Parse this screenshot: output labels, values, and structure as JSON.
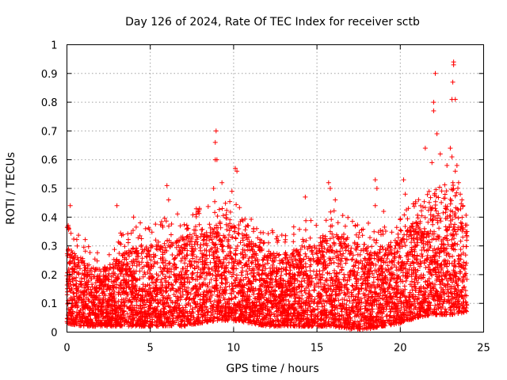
{
  "chart_data": {
    "type": "scatter",
    "title": "Day 126 of 2024, Rate Of TEC Index for receiver sctb",
    "xlabel": "GPS time / hours",
    "ylabel": "ROTI / TECUs",
    "xlim": [
      0,
      25
    ],
    "ylim": [
      0,
      1
    ],
    "xticks": [
      "0",
      "5",
      "10",
      "15",
      "20",
      "25"
    ],
    "yticks": [
      "0",
      "0.1",
      "0.2",
      "0.3",
      "0.4",
      "0.5",
      "0.6",
      "0.7",
      "0.8",
      "0.9",
      "1"
    ],
    "grid": true,
    "marker": "plus",
    "color": "#ff0000",
    "series": [
      {
        "x_range": [
          0,
          24
        ],
        "bulk_profile": [
          {
            "x": 0.0,
            "lo": 0.03,
            "hi": 0.3
          },
          {
            "x": 1.0,
            "lo": 0.02,
            "hi": 0.25
          },
          {
            "x": 2.0,
            "lo": 0.02,
            "hi": 0.22
          },
          {
            "x": 3.0,
            "lo": 0.02,
            "hi": 0.26
          },
          {
            "x": 4.0,
            "lo": 0.02,
            "hi": 0.3
          },
          {
            "x": 5.0,
            "lo": 0.02,
            "hi": 0.3
          },
          {
            "x": 6.0,
            "lo": 0.02,
            "hi": 0.32
          },
          {
            "x": 7.0,
            "lo": 0.02,
            "hi": 0.34
          },
          {
            "x": 8.0,
            "lo": 0.03,
            "hi": 0.36
          },
          {
            "x": 9.0,
            "lo": 0.04,
            "hi": 0.38
          },
          {
            "x": 10.0,
            "lo": 0.04,
            "hi": 0.38
          },
          {
            "x": 11.0,
            "lo": 0.03,
            "hi": 0.32
          },
          {
            "x": 12.0,
            "lo": 0.02,
            "hi": 0.28
          },
          {
            "x": 13.0,
            "lo": 0.02,
            "hi": 0.27
          },
          {
            "x": 14.0,
            "lo": 0.02,
            "hi": 0.3
          },
          {
            "x": 15.0,
            "lo": 0.02,
            "hi": 0.33
          },
          {
            "x": 16.0,
            "lo": 0.02,
            "hi": 0.35
          },
          {
            "x": 17.0,
            "lo": 0.01,
            "hi": 0.32
          },
          {
            "x": 18.0,
            "lo": 0.01,
            "hi": 0.3
          },
          {
            "x": 19.0,
            "lo": 0.02,
            "hi": 0.3
          },
          {
            "x": 20.0,
            "lo": 0.03,
            "hi": 0.32
          },
          {
            "x": 21.0,
            "lo": 0.05,
            "hi": 0.4
          },
          {
            "x": 22.0,
            "lo": 0.06,
            "hi": 0.42
          },
          {
            "x": 23.0,
            "lo": 0.06,
            "hi": 0.45
          },
          {
            "x": 24.0,
            "lo": 0.07,
            "hi": 0.4
          }
        ],
        "outliers": [
          {
            "x": 0.1,
            "y": 0.36
          },
          {
            "x": 0.2,
            "y": 0.44
          },
          {
            "x": 3.0,
            "y": 0.44
          },
          {
            "x": 4.0,
            "y": 0.4
          },
          {
            "x": 4.4,
            "y": 0.38
          },
          {
            "x": 6.0,
            "y": 0.51
          },
          {
            "x": 6.1,
            "y": 0.46
          },
          {
            "x": 8.8,
            "y": 0.5
          },
          {
            "x": 8.9,
            "y": 0.6
          },
          {
            "x": 8.9,
            "y": 0.66
          },
          {
            "x": 8.95,
            "y": 0.7
          },
          {
            "x": 9.0,
            "y": 0.6
          },
          {
            "x": 9.3,
            "y": 0.52
          },
          {
            "x": 9.9,
            "y": 0.49
          },
          {
            "x": 10.1,
            "y": 0.57
          },
          {
            "x": 10.2,
            "y": 0.56
          },
          {
            "x": 14.3,
            "y": 0.47
          },
          {
            "x": 15.7,
            "y": 0.52
          },
          {
            "x": 15.8,
            "y": 0.5
          },
          {
            "x": 16.1,
            "y": 0.46
          },
          {
            "x": 18.5,
            "y": 0.53
          },
          {
            "x": 18.6,
            "y": 0.5
          },
          {
            "x": 18.5,
            "y": 0.44
          },
          {
            "x": 19.0,
            "y": 0.42
          },
          {
            "x": 20.2,
            "y": 0.53
          },
          {
            "x": 20.3,
            "y": 0.48
          },
          {
            "x": 21.5,
            "y": 0.64
          },
          {
            "x": 21.9,
            "y": 0.59
          },
          {
            "x": 22.0,
            "y": 0.77
          },
          {
            "x": 22.0,
            "y": 0.8
          },
          {
            "x": 22.1,
            "y": 0.9
          },
          {
            "x": 22.2,
            "y": 0.69
          },
          {
            "x": 22.4,
            "y": 0.62
          },
          {
            "x": 22.8,
            "y": 0.58
          },
          {
            "x": 23.0,
            "y": 0.64
          },
          {
            "x": 23.1,
            "y": 0.61
          },
          {
            "x": 23.1,
            "y": 0.81
          },
          {
            "x": 23.15,
            "y": 0.87
          },
          {
            "x": 23.2,
            "y": 0.93
          },
          {
            "x": 23.2,
            "y": 0.94
          },
          {
            "x": 23.3,
            "y": 0.81
          },
          {
            "x": 23.3,
            "y": 0.56
          },
          {
            "x": 23.4,
            "y": 0.58
          },
          {
            "x": 23.5,
            "y": 0.52
          },
          {
            "x": 23.6,
            "y": 0.48
          },
          {
            "x": 23.7,
            "y": 0.46
          }
        ]
      }
    ]
  }
}
